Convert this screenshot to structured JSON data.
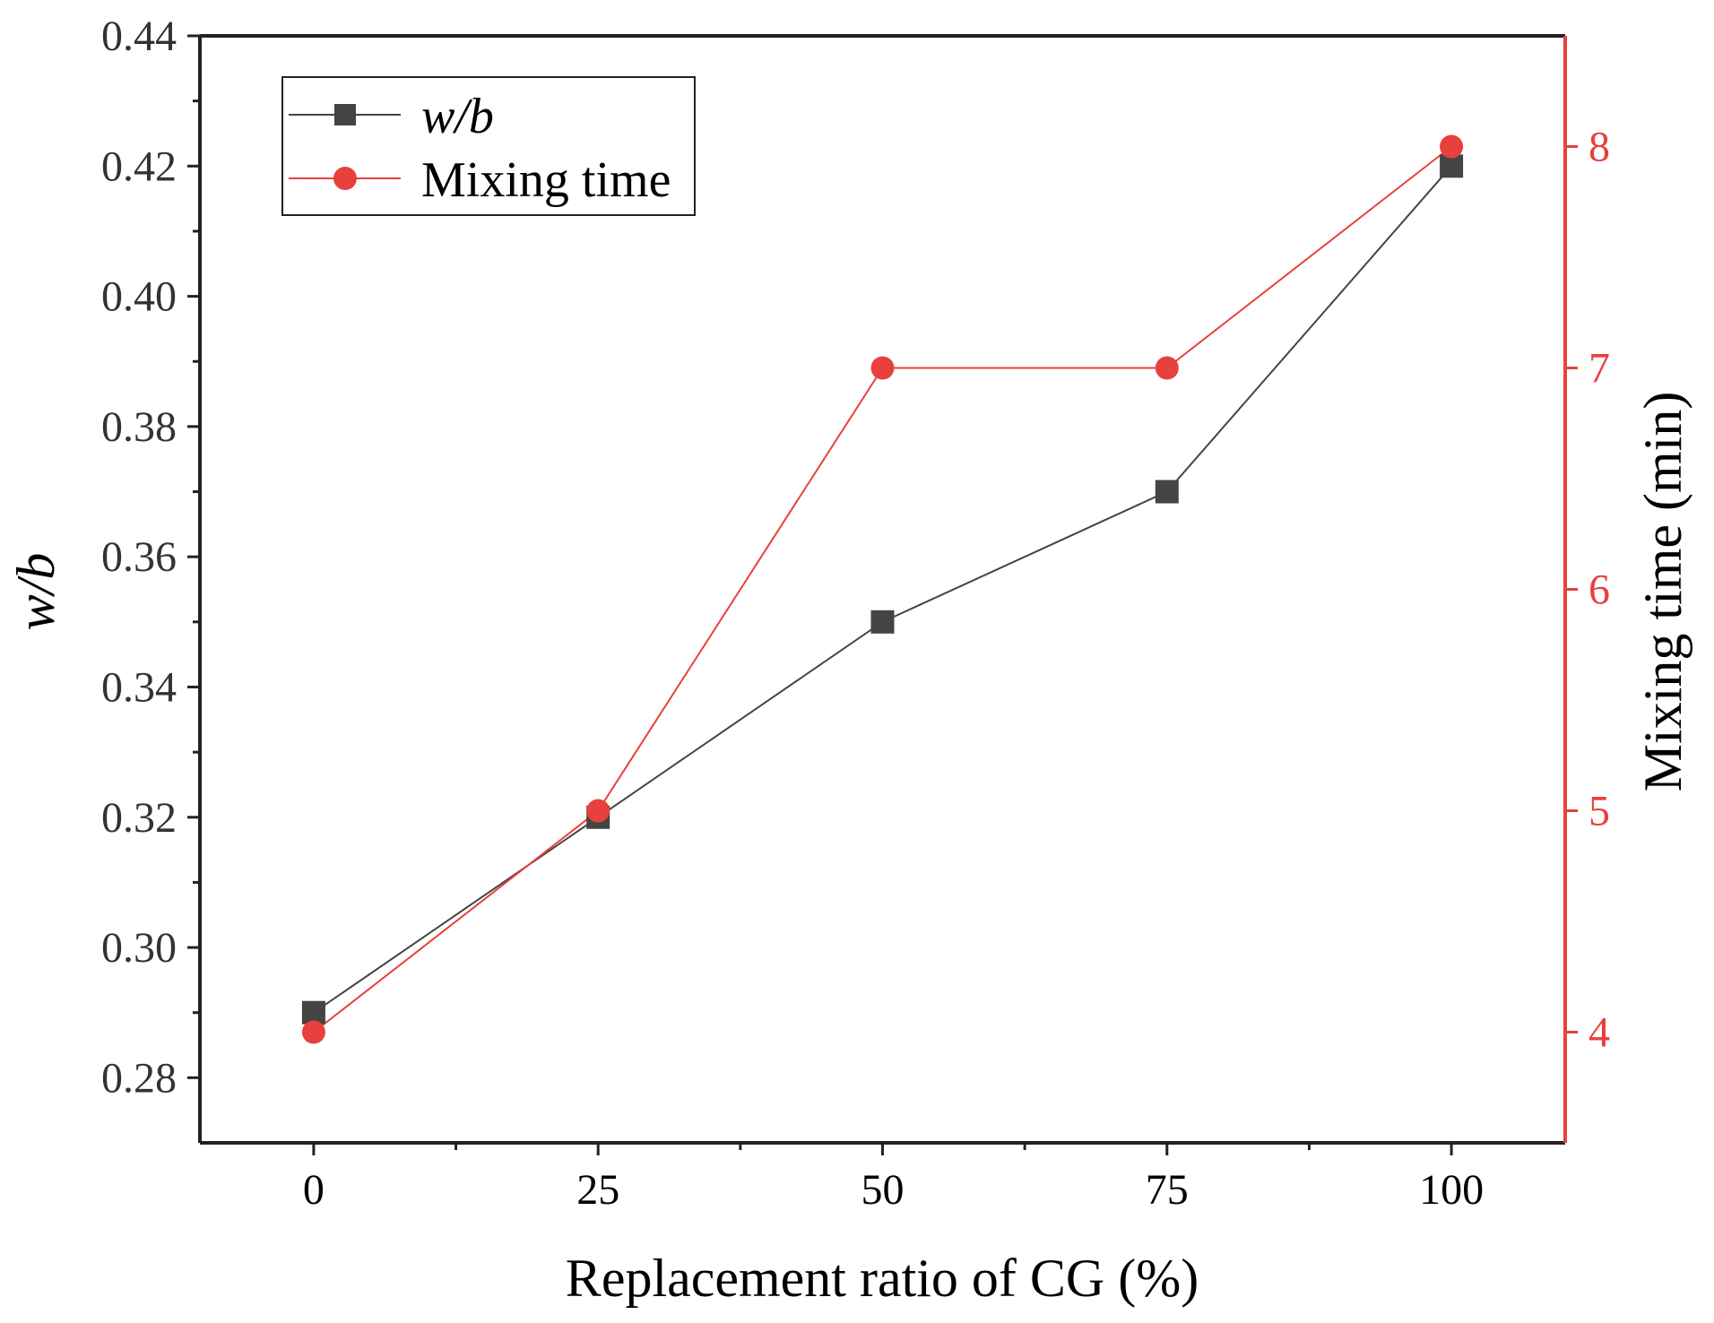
{
  "chart_data": {
    "type": "line",
    "categories": [
      "0",
      "25",
      "50",
      "75",
      "100"
    ],
    "x": [
      0,
      25,
      50,
      75,
      100
    ],
    "xlabel": "Replacement ratio of CG (%)",
    "xlim": [
      -10,
      110
    ],
    "xticks": [
      "0",
      "25",
      "50",
      "75",
      "100"
    ],
    "ylabel": "w/b",
    "ylim": [
      0.27,
      0.44
    ],
    "yticks": [
      "0.28",
      "0.30",
      "0.32",
      "0.34",
      "0.36",
      "0.38",
      "0.40",
      "0.42",
      "0.44"
    ],
    "y2label": "Mixing time (min)",
    "y2lim": [
      3.5,
      8.5
    ],
    "y2ticks": [
      "4",
      "5",
      "6",
      "7",
      "8"
    ],
    "series": [
      {
        "name": "w/b",
        "axis": "left",
        "marker": "square",
        "color": "#444444",
        "values": [
          0.29,
          0.32,
          0.35,
          0.37,
          0.42
        ]
      },
      {
        "name": "Mixing time",
        "axis": "right",
        "marker": "circle",
        "color": "#e8403d",
        "values": [
          4,
          5,
          7,
          7,
          8
        ]
      }
    ],
    "legend": {
      "position": "top-left",
      "labels": [
        "w/b",
        "Mixing time"
      ]
    },
    "grid": false
  }
}
